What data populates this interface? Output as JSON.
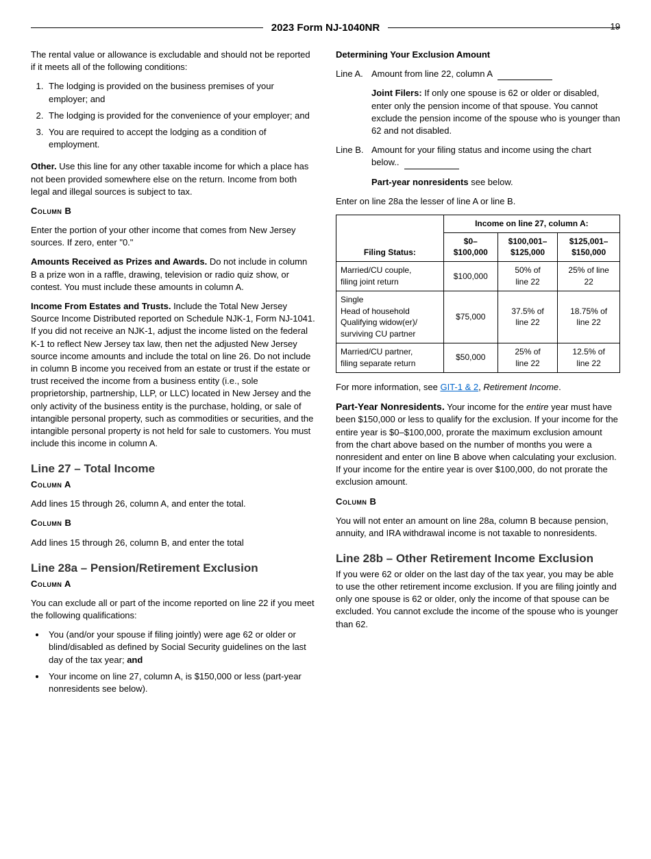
{
  "header": {
    "title": "2023 Form NJ-1040NR",
    "page_number": "19"
  },
  "left": {
    "rental_intro": "The rental value or allowance is excludable and should not be reported if it meets all of the following conditions:",
    "rental_list": [
      "The lodging is provided on the business premises of your employer; and",
      "The lodging is provided for the convenience of your employer; and",
      "You are required to accept the lodging as a condition of employment."
    ],
    "other_label": "Other.",
    "other_text": " Use this line for any other taxable income for which a place has not been provided somewhere else on the return. Income from both legal and illegal sources is subject to tax.",
    "col_b_heading": "Column  B",
    "col_b_text": "Enter the portion of your other income that comes from New Jersey sources. If zero, enter \"0.\"",
    "prizes_label": "Amounts Received as Prizes and Awards.",
    "prizes_text": " Do not include in column B a prize won in a raffle, drawing, television or radio quiz show, or contest. You must include these amounts in column A.",
    "estates_label": "Income From Estates and Trusts.",
    "estates_text": " Include the Total New Jersey Source Income Distributed reported on Schedule NJK-1, Form NJ-1041. If you did not receive an NJK-1, adjust the income listed on the federal K-1 to reflect New Jersey tax law, then net the adjusted New Jersey source income amounts and include the total on line 26. Do not include in column B income you received from an estate or trust if the estate or trust received the income from a business entity (i.e., sole proprietorship, partnership, LLP, or LLC) located in New Jersey and the only activity of the business entity is the purchase, holding, or sale of intangible personal property, such as commodities or securities, and the intangible personal property is not held for sale to customers. You must include this income in column A.",
    "line27_title": "Line 27 – Total Income",
    "line27_col_a": "Column  A",
    "line27_col_a_text": "Add lines 15 through 26, column A, and enter the total.",
    "line27_col_b": "Column  B",
    "line27_col_b_text": "Add lines 15 through 26, column B, and enter the total",
    "line28a_title": "Line 28a – Pension/Retirement Exclusion",
    "line28a_col_a": "Column  A",
    "line28a_intro": "You can exclude all or part of the income reported on line 22 if you meet the following qualifications:",
    "line28a_bullets": [
      {
        "pre": "You (and/or your spouse if filing jointly) were age 62 or older or blind/disabled as defined by Social Security guidelines on the last day of the tax year; ",
        "bold": "and"
      },
      {
        "pre": "Your income on line 27, column A, is $150,000 or less (part-year nonresidents see below).",
        "bold": ""
      }
    ]
  },
  "right": {
    "det_heading": "Determining Your Exclusion Amount",
    "line_a_label": "Line A.",
    "line_a_text": "Amount from line 22, column A",
    "joint_label": "Joint Filers:",
    "joint_text": " If only one spouse is 62 or older or disabled, enter only the pension income of that spouse. You cannot exclude the pension income of the spouse who is younger than 62 and not disabled.",
    "line_b_label": "Line B.",
    "line_b_text": "Amount for your filing status and income using the chart below..",
    "pty_label": "Part-year nonresidents",
    "pty_text": " see below.",
    "enter_lesser": "Enter on line 28a the lesser of line A or line B.",
    "table": {
      "top_header": "Income on line 27, column A:",
      "filing_status_header": "Filing Status:",
      "cols": [
        "$0–\n$100,000",
        "$100,001–\n$125,000",
        "$125,001–\n$150,000"
      ],
      "rows": [
        {
          "fs": "Married/CU couple,\n   filing joint return",
          "c1": "$100,000",
          "c2": "50% of\nline 22",
          "c3": "25% of line\n22"
        },
        {
          "fs": "Single\nHead of household\nQualifying widow(er)/\n   surviving CU partner",
          "c1": "$75,000",
          "c2": "37.5% of\nline 22",
          "c3": "18.75% of\nline 22"
        },
        {
          "fs": "Married/CU partner,\n   filing separate return",
          "c1": "$50,000",
          "c2": "25% of\nline 22",
          "c3": "12.5% of\nline 22"
        }
      ]
    },
    "more_info_pre": "For more information, see ",
    "more_info_link": "GIT-1 & 2",
    "more_info_post": ", ",
    "more_info_em": "Retirement Income",
    "more_info_end": ".",
    "pty_nonres_label": "Part-Year Nonresidents.",
    "pty_nonres_text_pre": " Your income for the ",
    "pty_nonres_em": "entire",
    "pty_nonres_text_post": " year must have been $150,000 or less to qualify for the exclusion. If your income for the entire year is $0–$100,000, prorate the maximum exclusion amount from the chart above based on the number of months you were a nonresident and enter on line B above when calculating your exclusion. If your income for the entire year is over $100,000, do not prorate the exclusion amount.",
    "col_b_heading": "Column  B",
    "col_b_text": "You will not enter an amount on line 28a, column B because pension, annuity, and IRA withdrawal income is not taxable to nonresidents.",
    "line28b_title": "Line 28b – Other Retirement Income Exclusion",
    "line28b_text": "If you were 62 or older on the last day of the tax year, you may be able to use the other retirement income exclusion. If you are filing jointly and only one spouse is 62 or older, only the income of that spouse can be excluded. You cannot exclude the income of the spouse who is younger than 62."
  }
}
